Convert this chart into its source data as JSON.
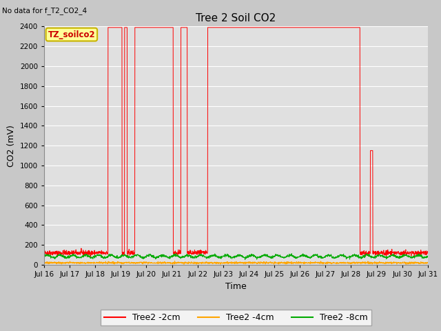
{
  "title": "Tree 2 Soil CO2",
  "no_data_text": "No data for f_T2_CO2_4",
  "xlabel": "Time",
  "ylabel": "CO2 (mV)",
  "ylim": [
    0,
    2400
  ],
  "yticks": [
    0,
    200,
    400,
    600,
    800,
    1000,
    1200,
    1400,
    1600,
    1800,
    2000,
    2200,
    2400
  ],
  "xtick_labels": [
    "Jul 16",
    "Jul 17",
    "Jul 18",
    "Jul 19",
    "Jul 20",
    "Jul 21",
    "Jul 22",
    "Jul 23",
    "Jul 24",
    "Jul 25",
    "Jul 26",
    "Jul 27",
    "Jul 28",
    "Jul 29",
    "Jul 30",
    "Jul 31"
  ],
  "background_color": "#c8c8c8",
  "plot_bg_color": "#e0e0e0",
  "grid_color": "#ffffff",
  "legend_box_facecolor": "#ffff99",
  "legend_box_edgecolor": "#c8b400",
  "annotation_text": "TZ_soilco2",
  "line_colors": {
    "2cm": "#ff0000",
    "4cm": "#ffa500",
    "8cm": "#00aa00"
  },
  "legend_labels": [
    "Tree2 -2cm",
    "Tree2 -4cm",
    "Tree2 -8cm"
  ],
  "base_2cm": 120,
  "base_4cm": 20,
  "base_8cm": 90,
  "spike_max": 2390,
  "spike_small": 1150,
  "n_days": 15,
  "pts_per_day": 144,
  "spikes_2cm": [
    {
      "start_day": 2.5,
      "end_day": 3.05,
      "val": 2390
    },
    {
      "start_day": 3.15,
      "end_day": 3.25,
      "val": 2390
    },
    {
      "start_day": 3.55,
      "end_day": 5.05,
      "val": 2390
    },
    {
      "start_day": 5.35,
      "end_day": 5.6,
      "val": 2390
    },
    {
      "start_day": 6.4,
      "end_day": 12.35,
      "val": 2390
    },
    {
      "start_day": 12.75,
      "end_day": 12.85,
      "val": 1150
    }
  ]
}
